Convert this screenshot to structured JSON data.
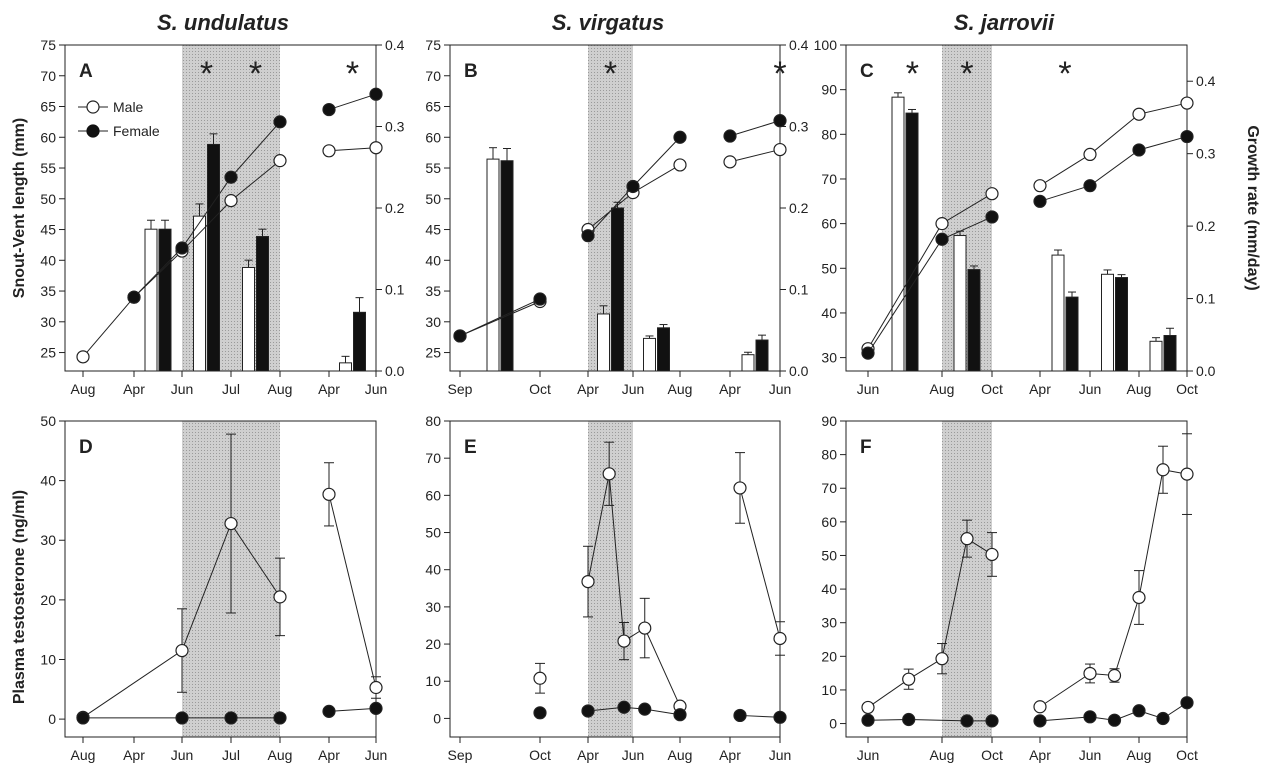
{
  "figure": {
    "titles": [
      "S. undulatus",
      "S. virgatus",
      "S. jarrovii"
    ],
    "y_left_top": "Snout-Vent length (mm)",
    "y_right_top": "Growth rate (mm/day)",
    "y_left_bottom": "Plasma  testosterone (ng/ml)",
    "legend": {
      "male": "Male",
      "female": "Female"
    }
  },
  "chart_data": [
    {
      "panel": "A",
      "type": "bar+line",
      "species": "S. undulatus",
      "x_ticks": [
        "Aug",
        "Apr",
        "Jun",
        "Jul",
        "Aug",
        "Apr",
        "Jun"
      ],
      "shaded_ticks": [
        2,
        4
      ],
      "ylim_left": [
        22,
        75
      ],
      "yticks_left": [
        25,
        30,
        35,
        40,
        45,
        50,
        55,
        60,
        65,
        70,
        75
      ],
      "ylim_right": [
        0,
        0.4
      ],
      "yticks_right": [
        "0.0",
        "0.1",
        "0.2",
        "0.3",
        "0.4"
      ],
      "stars_at": [
        2.5,
        3.5,
        5.5
      ],
      "svl_male": [
        {
          "seg": 0,
          "pts": [
            [
              0,
              24.3
            ],
            [
              1,
              34
            ],
            [
              2,
              41.5
            ],
            [
              3,
              49.7
            ],
            [
              4,
              56.2
            ]
          ]
        },
        {
          "seg": 1,
          "pts": [
            [
              5,
              57.8
            ],
            [
              6,
              58.3
            ]
          ]
        }
      ],
      "svl_female": [
        {
          "seg": 0,
          "pts": [
            [
              1,
              34
            ],
            [
              2,
              42
            ],
            [
              3,
              53.5
            ],
            [
              4,
              62.5
            ]
          ]
        },
        {
          "seg": 1,
          "pts": [
            [
              5,
              64.5
            ],
            [
              6,
              67
            ]
          ]
        }
      ],
      "growth_bars": [
        {
          "x": 1.5,
          "male": 0.174,
          "male_err": 0.011,
          "female": 0.174,
          "female_err": 0.011
        },
        {
          "x": 2.5,
          "male": 0.19,
          "male_err": 0.015,
          "female": 0.278,
          "female_err": 0.013
        },
        {
          "x": 3.5,
          "male": 0.127,
          "male_err": 0.009,
          "female": 0.165,
          "female_err": 0.009
        },
        {
          "x": 5.5,
          "male": 0.01,
          "male_err": 0.008,
          "female": 0.072,
          "female_err": 0.018
        }
      ]
    },
    {
      "panel": "B",
      "type": "bar+line",
      "species": "S. virgatus",
      "x_ticks": [
        "Sep",
        "Oct",
        "Apr",
        "Jun",
        "Aug",
        "Apr",
        "Jun"
      ],
      "shaded_ticks": [
        2,
        3
      ],
      "ylim_left": [
        22,
        75
      ],
      "yticks_left": [
        25,
        30,
        35,
        40,
        45,
        50,
        55,
        60,
        65,
        70,
        75
      ],
      "ylim_right": [
        0,
        0.4
      ],
      "yticks_right": [
        "0.0",
        "0.1",
        "0.2",
        "0.3",
        "0.4"
      ],
      "stars_at": [
        2.5,
        6
      ],
      "svl_male": [
        {
          "seg": 0,
          "pts": [
            [
              0,
              27.7
            ],
            [
              1,
              33.3
            ]
          ]
        },
        {
          "seg": 1,
          "pts": [
            [
              2,
              45
            ],
            [
              3,
              51
            ],
            [
              4,
              55.5
            ]
          ]
        },
        {
          "seg": 2,
          "pts": [
            [
              5,
              56
            ],
            [
              6,
              58
            ]
          ]
        }
      ],
      "svl_female": [
        {
          "seg": 0,
          "pts": [
            [
              0,
              27.7
            ],
            [
              1,
              33.7
            ]
          ]
        },
        {
          "seg": 1,
          "pts": [
            [
              2,
              44
            ],
            [
              3,
              52
            ],
            [
              4,
              60
            ]
          ]
        },
        {
          "seg": 2,
          "pts": [
            [
              5,
              60.2
            ],
            [
              6,
              62.7
            ]
          ]
        }
      ],
      "growth_bars": [
        {
          "x": 0.5,
          "male": 0.26,
          "male_err": 0.014,
          "female": 0.258,
          "female_err": 0.015
        },
        {
          "x": 2.5,
          "male": 0.07,
          "male_err": 0.01,
          "female": 0.2,
          "female_err": 0.007
        },
        {
          "x": 3.5,
          "male": 0.04,
          "male_err": 0.003,
          "female": 0.053,
          "female_err": 0.004
        },
        {
          "x": 5.5,
          "male": 0.02,
          "male_err": 0.003,
          "female": 0.038,
          "female_err": 0.006
        }
      ]
    },
    {
      "panel": "C",
      "type": "bar+line",
      "species": "S. jarrovii",
      "x_ticks": [
        "Jun",
        "Aug",
        "Oct",
        "Apr",
        "Jun",
        "Aug",
        "Oct"
      ],
      "shaded_ticks": [
        1,
        2
      ],
      "ylim_left": [
        27,
        100
      ],
      "yticks_left": [
        30,
        40,
        50,
        60,
        70,
        80,
        90,
        100
      ],
      "ylim_right": [
        0,
        0.45
      ],
      "yticks_right": [
        "0.0",
        "0.1",
        "0.2",
        "0.3",
        "0.4"
      ],
      "stars_at": [
        0.6,
        1.5,
        3.5
      ],
      "svl_male": [
        {
          "seg": 0,
          "pts": [
            [
              0,
              32
            ],
            [
              1,
              60
            ],
            [
              2,
              66.7
            ]
          ]
        },
        {
          "seg": 1,
          "pts": [
            [
              3,
              68.5
            ],
            [
              4,
              75.5
            ],
            [
              5,
              84.5
            ],
            [
              6,
              87
            ]
          ]
        }
      ],
      "svl_female": [
        {
          "seg": 0,
          "pts": [
            [
              0,
              31
            ],
            [
              1,
              56.5
            ],
            [
              2,
              61.5
            ]
          ]
        },
        {
          "seg": 1,
          "pts": [
            [
              3,
              65
            ],
            [
              4,
              68.5
            ],
            [
              5,
              76.5
            ],
            [
              6,
              79.5
            ]
          ]
        }
      ],
      "growth_bars": [
        {
          "x": 0.5,
          "male": 0.378,
          "male_err": 0.006,
          "female": 0.356,
          "female_err": 0.005
        },
        {
          "x": 1.5,
          "male": 0.187,
          "male_err": 0.006,
          "female": 0.14,
          "female_err": 0.005
        },
        {
          "x": 3.5,
          "male": 0.16,
          "male_err": 0.007,
          "female": 0.102,
          "female_err": 0.007
        },
        {
          "x": 4.5,
          "male": 0.1335,
          "male_err": 0.006,
          "female": 0.129,
          "female_err": 0.004
        },
        {
          "x": 5.5,
          "male": 0.041,
          "male_err": 0.005,
          "female": 0.049,
          "female_err": 0.01
        }
      ]
    },
    {
      "panel": "D",
      "type": "line",
      "species": "S. undulatus",
      "x_ticks": [
        "Aug",
        "Apr",
        "Jun",
        "Jul",
        "Aug",
        "Apr",
        "Jun"
      ],
      "shaded_ticks": [
        2,
        4
      ],
      "ylim": [
        -3,
        50
      ],
      "yticks": [
        0,
        10,
        20,
        30,
        40,
        50
      ],
      "male": [
        {
          "seg": 0,
          "pts": [
            [
              0,
              0.3,
              0
            ],
            [
              2,
              11.5,
              7
            ],
            [
              3,
              32.8,
              15
            ],
            [
              4,
              20.5,
              6.5
            ]
          ]
        },
        {
          "seg": 1,
          "pts": [
            [
              5,
              37.7,
              5.3
            ],
            [
              6,
              5.3,
              1.8
            ]
          ]
        }
      ],
      "female": [
        {
          "seg": 0,
          "pts": [
            [
              0,
              0.2,
              0
            ],
            [
              2,
              0.2,
              0
            ],
            [
              3,
              0.2,
              0
            ],
            [
              4,
              0.2,
              0
            ]
          ]
        },
        {
          "seg": 1,
          "pts": [
            [
              5,
              1.3,
              0
            ],
            [
              6,
              1.8,
              0
            ]
          ]
        }
      ]
    },
    {
      "panel": "E",
      "type": "line",
      "species": "S. virgatus",
      "x_ticks": [
        "Sep",
        "Oct",
        "Apr",
        "Jun",
        "Aug",
        "Apr",
        "Jun"
      ],
      "shaded_ticks": [
        2,
        3
      ],
      "ylim": [
        -5,
        80
      ],
      "yticks": [
        0,
        10,
        20,
        30,
        40,
        50,
        60,
        70,
        80
      ],
      "male": [
        {
          "seg": 0,
          "pts": [
            [
              1,
              10.8,
              4
            ]
          ]
        },
        {
          "seg": 1,
          "pts": [
            [
              2,
              36.8,
              9.5
            ],
            [
              2.47,
              65.8,
              8.5
            ],
            [
              2.8,
              20.8,
              5
            ],
            [
              3.25,
              24.3,
              8
            ],
            [
              4,
              3.3,
              0
            ]
          ]
        },
        {
          "seg": 2,
          "pts": [
            [
              5.2,
              62,
              9.5
            ],
            [
              6,
              21.5,
              4.5
            ]
          ]
        }
      ],
      "female": [
        {
          "seg": 0,
          "pts": [
            [
              1,
              1.5,
              0
            ]
          ]
        },
        {
          "seg": 1,
          "pts": [
            [
              2,
              2,
              0
            ],
            [
              2.8,
              3,
              0
            ],
            [
              3.25,
              2.5,
              0
            ],
            [
              4,
              1,
              0
            ]
          ]
        },
        {
          "seg": 2,
          "pts": [
            [
              5.2,
              0.8,
              0
            ],
            [
              6,
              0.3,
              0
            ]
          ]
        }
      ]
    },
    {
      "panel": "F",
      "type": "line",
      "species": "S. jarrovii",
      "x_ticks": [
        "Jun",
        "Aug",
        "Oct",
        "Apr",
        "Jun",
        "Aug",
        "Oct"
      ],
      "shaded_ticks": [
        1,
        2
      ],
      "ylim": [
        -4,
        90
      ],
      "yticks": [
        0,
        10,
        20,
        30,
        40,
        50,
        60,
        70,
        80,
        90
      ],
      "male": [
        {
          "seg": 0,
          "pts": [
            [
              0,
              4.8,
              0
            ],
            [
              0.55,
              13.2,
              3
            ],
            [
              1,
              19.3,
              4.5
            ],
            [
              1.5,
              55,
              5.5
            ],
            [
              2,
              50.3,
              6.5
            ]
          ]
        },
        {
          "seg": 1,
          "pts": [
            [
              3,
              5,
              0
            ],
            [
              4,
              14.9,
              2.8
            ],
            [
              4.5,
              14.3,
              2
            ],
            [
              5,
              37.5,
              8
            ],
            [
              5.5,
              75.5,
              7
            ],
            [
              6,
              74.2,
              12
            ]
          ]
        }
      ],
      "female": [
        {
          "seg": 0,
          "pts": [
            [
              0,
              1,
              0
            ],
            [
              0.55,
              1.2,
              0
            ],
            [
              1.5,
              0.8,
              0
            ],
            [
              2,
              0.8,
              0
            ]
          ]
        },
        {
          "seg": 1,
          "pts": [
            [
              3,
              0.8,
              0
            ],
            [
              4,
              2,
              0
            ],
            [
              4.5,
              1,
              0
            ],
            [
              5,
              3.8,
              0
            ],
            [
              5.5,
              1.5,
              0
            ],
            [
              6,
              6.2,
              0
            ]
          ]
        }
      ]
    }
  ]
}
